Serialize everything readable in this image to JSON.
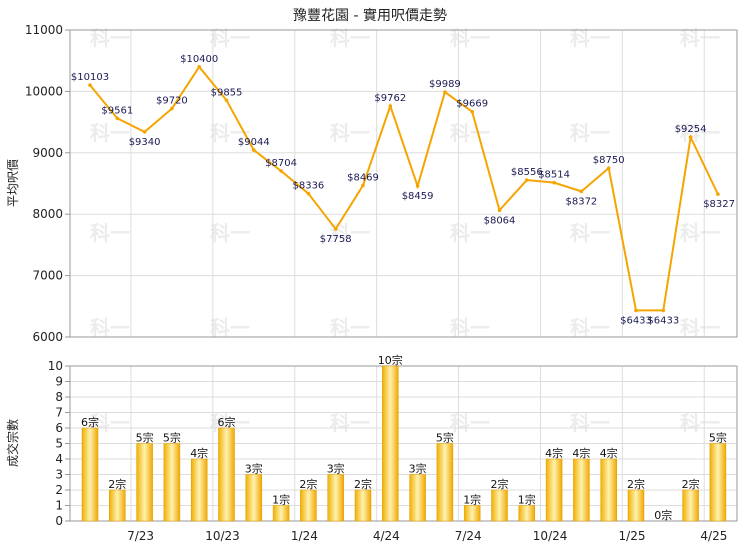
{
  "chart_data": [
    {
      "type": "line",
      "title": "豫豐花園 - 實用呎價走勢",
      "ylabel": "平均呎價",
      "ylim": [
        6000,
        11000
      ],
      "yticks": [
        "11000",
        "10000",
        "9000",
        "8000",
        "7000",
        "6000"
      ],
      "x_tick_labels": [
        "7/23",
        "10/23",
        "1/24",
        "4/24",
        "7/24",
        "10/24",
        "1/25",
        "4/25"
      ],
      "grid": true,
      "series": [
        {
          "color": "#f5a500",
          "values": [
            10103,
            9561,
            9340,
            9720,
            10400,
            9855,
            9044,
            8704,
            8336,
            7758,
            8469,
            9762,
            8459,
            9989,
            9669,
            8064,
            8556,
            8514,
            8372,
            8750,
            6433,
            6433,
            9254,
            8327
          ],
          "labels": [
            "$10103",
            "$9561",
            "$9340",
            "$9720",
            "$10400",
            "$9855",
            "$9044",
            "$8704",
            "$8336",
            "$7758",
            "$8469",
            "$9762",
            "$8459",
            "$9989",
            "$9669",
            "$8064",
            "$8556",
            "$8514",
            "$8372",
            "$8750",
            "$6433",
            "$6433",
            "$9254",
            "$8327"
          ]
        }
      ]
    },
    {
      "type": "bar",
      "ylabel": "成交宗數",
      "ylim": [
        0,
        10
      ],
      "yticks": [
        "0",
        "1",
        "2",
        "3",
        "4",
        "5",
        "6",
        "7",
        "8",
        "9",
        "10"
      ],
      "x_tick_labels": [
        "7/23",
        "10/23",
        "1/24",
        "4/24",
        "7/24",
        "10/24",
        "1/25",
        "4/25"
      ],
      "grid": true,
      "series": [
        {
          "color": "#f5b800",
          "values": [
            6,
            2,
            5,
            5,
            4,
            6,
            3,
            1,
            2,
            3,
            2,
            10,
            3,
            5,
            1,
            2,
            1,
            4,
            4,
            4,
            2,
            0,
            2,
            5
          ],
          "labels": [
            "6宗",
            "2宗",
            "5宗",
            "5宗",
            "4宗",
            "6宗",
            "3宗",
            "1宗",
            "2宗",
            "3宗",
            "2宗",
            "10宗",
            "3宗",
            "5宗",
            "1宗",
            "2宗",
            "1宗",
            "4宗",
            "4宗",
            "4宗",
            "2宗",
            "0宗",
            "2宗",
            "5宗"
          ]
        }
      ]
    }
  ],
  "watermark": "科一"
}
